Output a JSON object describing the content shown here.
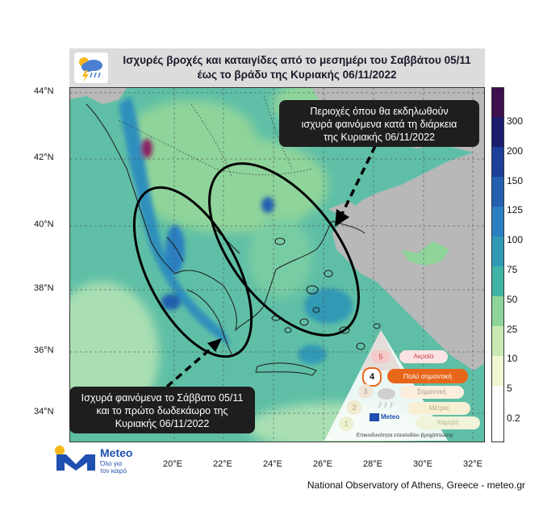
{
  "title": {
    "line1": "Ισχυρές βροχές και καταιγίδες από το μεσημέρι του Σαββάτου 05/11",
    "line2": "έως το βράδυ της Κυριακής 06/11/2022",
    "icon": "rain-storm-cloud-icon"
  },
  "latitude_labels": [
    "44°N",
    "42°N",
    "40°N",
    "38°N",
    "36°N",
    "34°N"
  ],
  "longitude_labels": [
    "20°E",
    "22°E",
    "24°E",
    "26°E",
    "28°E",
    "30°E",
    "32°E"
  ],
  "callouts": {
    "sunday": {
      "line1": "Περιοχές όπου θα εκδηλωθούν",
      "line2": "ισχυρά φαινόμενα κατά τη διάρκεια",
      "line3": "της Κυριακής 06/11/2022"
    },
    "saturday": {
      "line1": "Ισχυρά φαινόμενα το Σάββατο 05/11",
      "line2": "και το πρώτο δωδεκάωρο της",
      "line3": "Κυριακής 06/11/2022"
    }
  },
  "colorbar": {
    "labels": [
      "300",
      "200",
      "150",
      "125",
      "100",
      "75",
      "50",
      "25",
      "10",
      "5",
      "0.2"
    ],
    "colors": [
      "#3d0f4d",
      "#1b1c6e",
      "#1d3f99",
      "#2460b0",
      "#2b7fc0",
      "#3199b5",
      "#3fb4a6",
      "#8fd49a",
      "#c9ebb3",
      "#eef7cf",
      "#ffffff"
    ]
  },
  "risk_pyramid": {
    "levels": [
      "Ακραία",
      "Πολύ σημαντική",
      "Σημαντική",
      "Μέτρια",
      "Χαμηλή"
    ],
    "numbers": [
      "5",
      "4",
      "3",
      "2",
      "1"
    ],
    "active_level": "4",
    "footer_label": "Επικινδυνότητα επεισοδίου βροχόπτωσης",
    "brand": "Meteo"
  },
  "logo": {
    "name": "Meteo",
    "tagline_line1": "Όλο για",
    "tagline_line2": "τον καιρό"
  },
  "footer": "National Observatory of Athens, Greece - meteo.gr",
  "colors": {
    "sea_base": "#63c2a9",
    "land_gray": "#b8b8b8",
    "title_bg": "#dcdcdc",
    "callout_bg": "#1e1e1e",
    "active_risk": "#e8661a"
  }
}
